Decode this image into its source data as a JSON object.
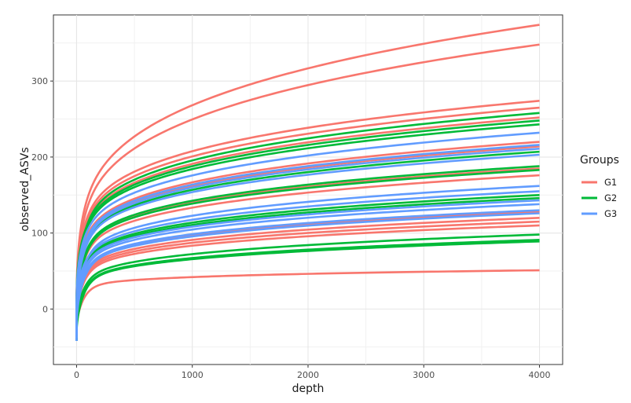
{
  "chart_data": {
    "type": "line",
    "xlabel": "depth",
    "ylabel": "observed_ASVs",
    "xlim": [
      -200,
      4200
    ],
    "ylim": [
      -73,
      387
    ],
    "x_ticks": [
      0,
      1000,
      2000,
      3000,
      4000
    ],
    "y_ticks": [
      0,
      100,
      200,
      300
    ],
    "grid": true,
    "legend": {
      "title": "Groups",
      "position": "right"
    },
    "groups": [
      {
        "name": "G1",
        "color": "#F8766D"
      },
      {
        "name": "G2",
        "color": "#00BA38"
      },
      {
        "name": "G3",
        "color": "#619CFF"
      }
    ],
    "curve_model": "y = y_end * (x/4000)^p - shift",
    "x_range": [
      0,
      4000
    ],
    "series": [
      {
        "group": "G1",
        "y_end": 374,
        "p": 0.24
      },
      {
        "group": "G1",
        "y_end": 348,
        "p": 0.24
      },
      {
        "group": "G1",
        "y_end": 274,
        "p": 0.2
      },
      {
        "group": "G1",
        "y_end": 265,
        "p": 0.2
      },
      {
        "group": "G1",
        "y_end": 252,
        "p": 0.2
      },
      {
        "group": "G1",
        "y_end": 220,
        "p": 0.2
      },
      {
        "group": "G1",
        "y_end": 214,
        "p": 0.2
      },
      {
        "group": "G1",
        "y_end": 185,
        "p": 0.2
      },
      {
        "group": "G1",
        "y_end": 176,
        "p": 0.2
      },
      {
        "group": "G1",
        "y_end": 128,
        "p": 0.2
      },
      {
        "group": "G1",
        "y_end": 120,
        "p": 0.2
      },
      {
        "group": "G1",
        "y_end": 115,
        "p": 0.2
      },
      {
        "group": "G1",
        "y_end": 110,
        "p": 0.2
      },
      {
        "group": "G1",
        "y_end": 51,
        "p": 0.14
      },
      {
        "group": "G2",
        "y_end": 258,
        "p": 0.2
      },
      {
        "group": "G2",
        "y_end": 248,
        "p": 0.2
      },
      {
        "group": "G2",
        "y_end": 243,
        "p": 0.2
      },
      {
        "group": "G2",
        "y_end": 207,
        "p": 0.2
      },
      {
        "group": "G2",
        "y_end": 188,
        "p": 0.2
      },
      {
        "group": "G2",
        "y_end": 183,
        "p": 0.2
      },
      {
        "group": "G2",
        "y_end": 150,
        "p": 0.2
      },
      {
        "group": "G2",
        "y_end": 146,
        "p": 0.2
      },
      {
        "group": "G2",
        "y_end": 98,
        "p": 0.22
      },
      {
        "group": "G2",
        "y_end": 91,
        "p": 0.22
      },
      {
        "group": "G2",
        "y_end": 89,
        "p": 0.22
      },
      {
        "group": "G3",
        "y_end": 232,
        "p": 0.2
      },
      {
        "group": "G3",
        "y_end": 216,
        "p": 0.2
      },
      {
        "group": "G3",
        "y_end": 211,
        "p": 0.2
      },
      {
        "group": "G3",
        "y_end": 203,
        "p": 0.2
      },
      {
        "group": "G3",
        "y_end": 162,
        "p": 0.2
      },
      {
        "group": "G3",
        "y_end": 155,
        "p": 0.2
      },
      {
        "group": "G3",
        "y_end": 143,
        "p": 0.2
      },
      {
        "group": "G3",
        "y_end": 138,
        "p": 0.2
      },
      {
        "group": "G3",
        "y_end": 130,
        "p": 0.2
      },
      {
        "group": "G3",
        "y_end": 126,
        "p": 0.2
      }
    ]
  }
}
